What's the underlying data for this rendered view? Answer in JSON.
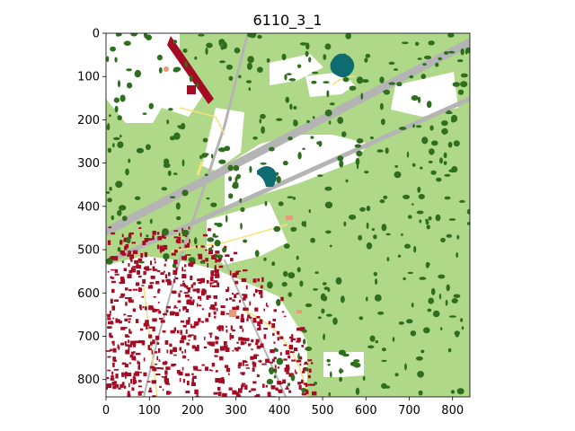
{
  "figure": {
    "title": "6110_3_1"
  },
  "axes": {
    "x_ticks": [
      "0",
      "100",
      "200",
      "300",
      "400",
      "500",
      "600",
      "700",
      "800"
    ],
    "y_ticks": [
      "0",
      "100",
      "200",
      "300",
      "400",
      "500",
      "600",
      "700",
      "800"
    ],
    "x_range": [
      0,
      840
    ],
    "y_range": [
      0,
      840
    ]
  },
  "colors": {
    "grassland": "#b0d889",
    "trees": "#2f6e1e",
    "buildings": "#a50b22",
    "roads": "#b4b4b4",
    "water": "#0e6b70",
    "paths": "#f5e27a",
    "bare": "#ffffff",
    "misc": "#e59a78"
  },
  "map_layers": [
    "grassland",
    "trees",
    "buildings",
    "roads",
    "water",
    "paths",
    "bare"
  ]
}
